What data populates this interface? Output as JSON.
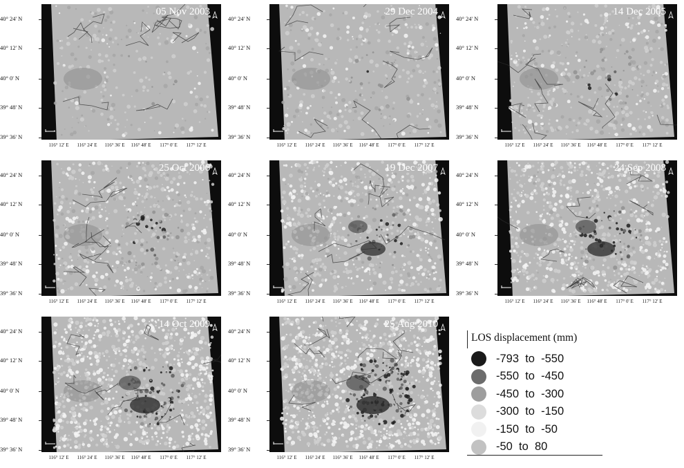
{
  "panels": [
    {
      "date": "05 Nov 2003",
      "level": 0
    },
    {
      "date": "29 Dec 2004",
      "level": 1
    },
    {
      "date": "14 Dec 2005",
      "level": 2
    },
    {
      "date": "25 Oct 2006",
      "level": 3
    },
    {
      "date": "19 Dec 2007",
      "level": 4
    },
    {
      "date": "24 Sep 2008",
      "level": 5
    },
    {
      "date": "14 Oct 2009",
      "level": 6
    },
    {
      "date": "25 Aug 2010",
      "level": 7
    }
  ],
  "lat_labels": [
    "40° 24' N",
    "40° 12' N",
    "40° 0' N",
    "39° 48' N",
    "39° 36' N"
  ],
  "lon_labels": [
    "116° 12' E",
    "116° 24' E",
    "116° 36' E",
    "116° 48' E",
    "117° 0' E",
    "117° 12' E"
  ],
  "legend": {
    "title": "LOS displacement (mm)",
    "classes": [
      {
        "from": "-793",
        "to": "-550",
        "color": "#1a1a1a"
      },
      {
        "from": "-550",
        "to": "-450",
        "color": "#6c6c6c"
      },
      {
        "from": "-450",
        "to": "-300",
        "color": "#9e9e9e"
      },
      {
        "from": "-300",
        "to": "-150",
        "color": "#dcdcdc"
      },
      {
        "from": "-150",
        "to": "-50",
        "color": "#f1f1f1"
      },
      {
        "from": "-50",
        "to": "80",
        "color": "#c2c2c2"
      }
    ]
  }
}
